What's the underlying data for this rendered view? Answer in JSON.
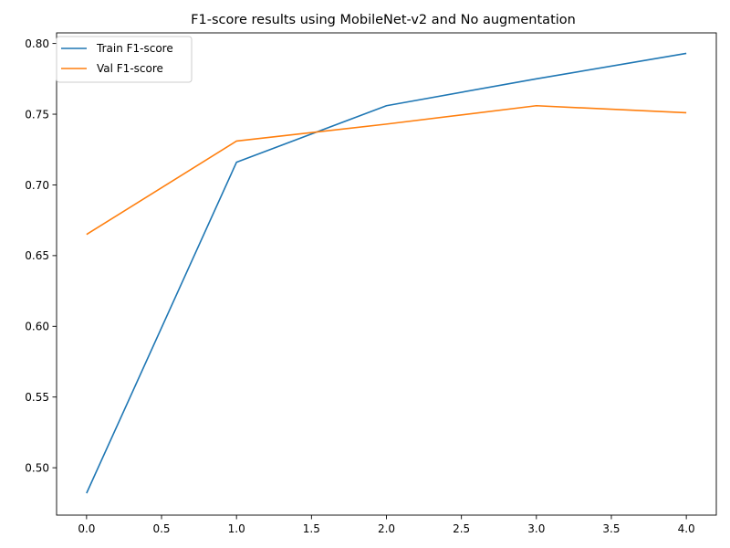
{
  "chart_data": {
    "type": "line",
    "title": "F1-score results using MobileNet-v2 and No augmentation",
    "xlabel": "",
    "ylabel": "",
    "x": [
      0,
      1,
      2,
      3,
      4
    ],
    "xlim": [
      -0.2,
      4.2
    ],
    "ylim": [
      0.4665,
      0.8075
    ],
    "xticks": [
      "0.0",
      "0.5",
      "1.0",
      "1.5",
      "2.0",
      "2.5",
      "3.0",
      "3.5",
      "4.0"
    ],
    "yticks": [
      "0.50",
      "0.55",
      "0.60",
      "0.65",
      "0.70",
      "0.75",
      "0.80"
    ],
    "grid": false,
    "legend_position": "top-left",
    "series": [
      {
        "name": "Train F1-score",
        "color": "#1f77b4",
        "values": [
          0.482,
          0.716,
          0.756,
          0.775,
          0.793
        ]
      },
      {
        "name": "Val F1-score",
        "color": "#ff7f0e",
        "values": [
          0.665,
          0.731,
          0.743,
          0.756,
          0.751
        ]
      }
    ]
  }
}
